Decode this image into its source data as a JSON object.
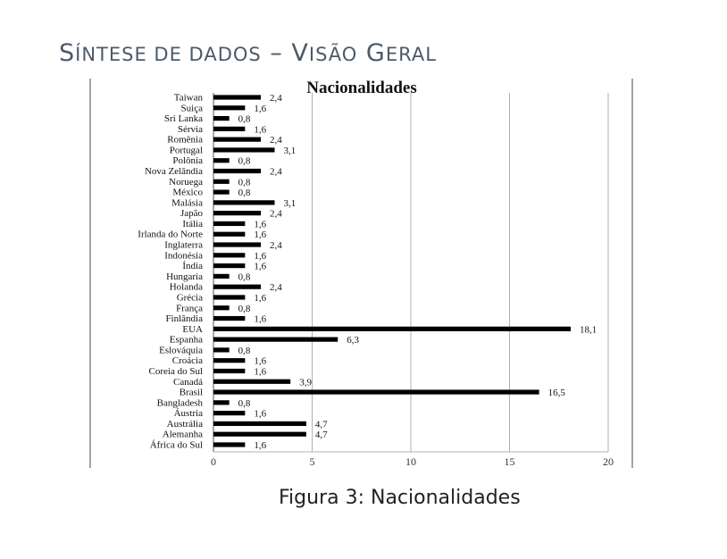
{
  "slide": {
    "title_a": "S",
    "title_b": "ÍNTESE DE DADOS",
    "title_dash": " – ",
    "title_c": "V",
    "title_d": "ISÃO",
    "title_e": " G",
    "title_f": "ERAL"
  },
  "caption": "Figura 3: Nacionalidades",
  "chart_data": {
    "type": "bar",
    "orientation": "horizontal",
    "title": "Nacionalidades",
    "xlim": [
      0,
      20
    ],
    "x_ticks": [
      0,
      5,
      10,
      15,
      20
    ],
    "grid": "vertical",
    "bar_color": "#000000",
    "categories": [
      "Taiwan",
      "Suiça",
      "Sri Lanka",
      "Sérvia",
      "Romênia",
      "Portugal",
      "Polônia",
      "Nova Zelândia",
      "Noruega",
      "México",
      "Malásia",
      "Japão",
      "Itália",
      "Irlanda do Norte",
      "Inglaterra",
      "Indonésia",
      "Índia",
      "Hungaria",
      "Holanda",
      "Grécia",
      "França",
      "Finlândia",
      "EUA",
      "Espanha",
      "Eslováquia",
      "Croácia",
      "Coreia do Sul",
      "Canadá",
      "Brasil",
      "Bangladesh",
      "Áustria",
      "Austrália",
      "Alemanha",
      "África do Sul"
    ],
    "values": [
      2.4,
      1.6,
      0.8,
      1.6,
      2.4,
      3.1,
      0.8,
      2.4,
      0.8,
      0.8,
      3.1,
      2.4,
      1.6,
      1.6,
      2.4,
      1.6,
      1.6,
      0.8,
      2.4,
      1.6,
      0.8,
      1.6,
      18.1,
      6.3,
      0.8,
      1.6,
      1.6,
      3.9,
      16.5,
      0.8,
      1.6,
      4.7,
      4.7,
      1.6
    ],
    "value_labels": [
      "2,4",
      "1,6",
      "0,8",
      "1,6",
      "2,4",
      "3,1",
      "0,8",
      "2,4",
      "0,8",
      "0,8",
      "3,1",
      "2,4",
      "1,6",
      "1,6",
      "2,4",
      "1,6",
      "1,6",
      "0,8",
      "2,4",
      "1,6",
      "0,8",
      "1,6",
      "18,1",
      "6,3",
      "0,8",
      "1,6",
      "1,6",
      "3,9",
      "16,5",
      "0,8",
      "1,6",
      "4,7",
      "4,7",
      "1,6"
    ]
  }
}
